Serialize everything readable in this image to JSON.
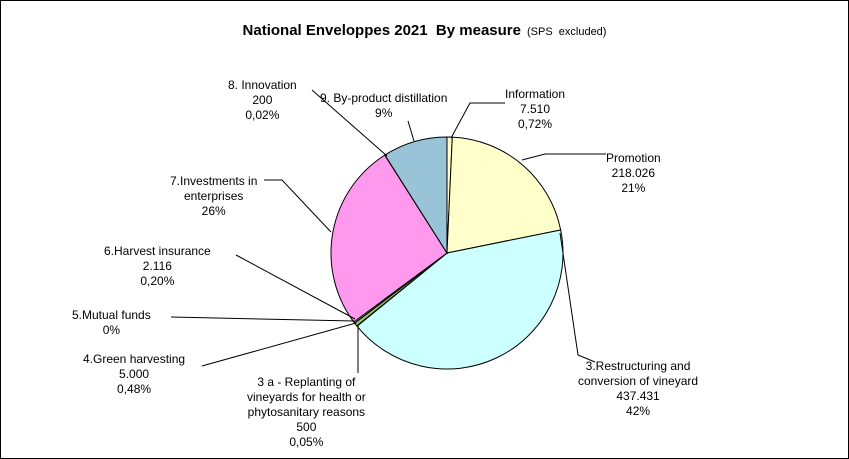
{
  "chart_data": {
    "type": "pie",
    "title": "National Enveloppes 2021  By measure",
    "subtitle": "(SPS  excluded)",
    "slices": [
      {
        "label": "Information",
        "value": 7510,
        "value_text": "7.510",
        "pct_text": "0,72%",
        "color": "#ffffcc"
      },
      {
        "label": "Promotion",
        "value": 218026,
        "value_text": "218.026",
        "pct_text": "21%",
        "color": "#ffffcc"
      },
      {
        "label": "3.Restructuring and conversion of vineyard",
        "value": 437431,
        "value_text": "437.431",
        "pct_text": "42%",
        "color": "#ccffff"
      },
      {
        "label": "3 a - Replanting of vineyards for health or phytosanitary reasons",
        "value": 500,
        "value_text": "500",
        "pct_text": "0,05%",
        "color": "#ccffff"
      },
      {
        "label": "4.Green harvesting",
        "value": 5000,
        "value_text": "5.000",
        "pct_text": "0,48%",
        "color": "#99cc66"
      },
      {
        "label": "5.Mutual funds",
        "value": 0,
        "value_text": "",
        "pct_text": "0%",
        "color": "#cccccc"
      },
      {
        "label": "6.Harvest insurance",
        "value": 2116,
        "value_text": "2.116",
        "pct_text": "0,20%",
        "color": "#cccccc"
      },
      {
        "label": "7.Investments in enterprises",
        "value": 270000,
        "value_text": "",
        "pct_text": "26%",
        "color": "#ff99ee"
      },
      {
        "label": "8. Innovation",
        "value": 200,
        "value_text": "200",
        "pct_text": "0,02%",
        "color": "#99ccdd"
      },
      {
        "label": "9. By-product distillation",
        "value": 93000,
        "value_text": "",
        "pct_text": "9%",
        "color": "#99c3d6"
      }
    ]
  },
  "labels": {
    "information": [
      "Information",
      "7.510",
      "0,72%"
    ],
    "promotion": [
      "Promotion",
      "218.026",
      "21%"
    ],
    "restructuring": [
      "3.Restructuring and",
      "conversion of vineyard",
      "437.431",
      "42%"
    ],
    "replanting": [
      "3 a - Replanting of",
      "vineyards for health or",
      "phytosanitary reasons",
      "500",
      "0,05%"
    ],
    "green": [
      "4.Green harvesting",
      "5.000",
      "0,48%"
    ],
    "mutual": [
      "5.Mutual funds",
      "0%"
    ],
    "harvest": [
      "6.Harvest insurance",
      "2.116",
      "0,20%"
    ],
    "investments": [
      "7.Investments in",
      "enterprises",
      "26%"
    ],
    "innovation": [
      "8. Innovation",
      "200",
      "0,02%"
    ],
    "distillation": [
      "9. By-product distillation",
      "9%"
    ]
  }
}
